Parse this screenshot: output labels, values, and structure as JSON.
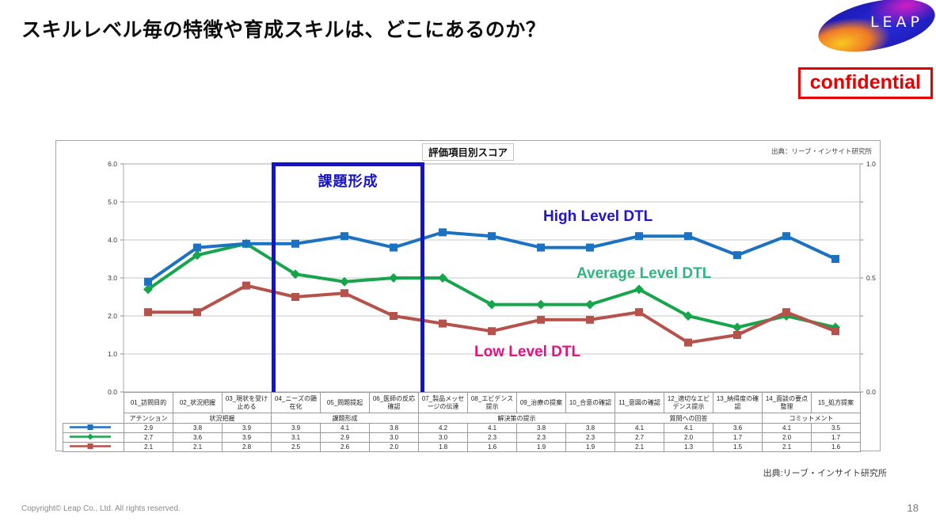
{
  "slide": {
    "title": "スキルレベル毎の特徴や育成スキルは、どこにあるのか？",
    "confidential_label": "confidential",
    "logo_text": "LEAP",
    "footnote_source": "出典:リーブ・インサイト研究所",
    "copyright": "Copyright© Leap Co., Ltd.  All rights reserved.",
    "page_number": "18"
  },
  "chart_data": {
    "type": "line",
    "title": "評価項目別スコア",
    "source": "出典：リーブ・インサイト研究所",
    "left_axis": {
      "min": 0,
      "max": 6,
      "ticks": [
        "6.0",
        "5.0",
        "4.0",
        "3.0",
        "2.0",
        "1.0",
        "0.0"
      ]
    },
    "right_axis": {
      "min": 0,
      "max": 1,
      "ticks": [
        "1.0",
        "0.5",
        "0.0"
      ],
      "tick_values_on_left_scale": [
        6,
        3,
        0
      ]
    },
    "gridline_color": "#c9c9c9",
    "categories": [
      "01_訪問目的",
      "02_状況把握",
      "03_現状を受け止める",
      "04_ニーズの顕在化",
      "05_問題提起",
      "06_医師の反応確認",
      "07_製品メッセージの伝達",
      "08_エビデンス提示",
      "09_治療の提案",
      "10_合意の確認",
      "11_意図の確認",
      "12_適切なエビデンス提示",
      "13_納得度の確認",
      "14_面談の要点整理",
      "15_処方提案"
    ],
    "category_groups": [
      {
        "label": "アテンション",
        "span": 1
      },
      {
        "label": "状況把握",
        "span": 2
      },
      {
        "label": "課題形成",
        "span": 3
      },
      {
        "label": "解決策の提示",
        "span": 4
      },
      {
        "label": "質問への回答",
        "span": 3
      },
      {
        "label": "コミットメント",
        "span": 2
      }
    ],
    "series": [
      {
        "name": "High Level DTL",
        "color": "#1b72c2",
        "label_color": "#2012ce",
        "marker": "square",
        "values": [
          2.9,
          3.8,
          3.9,
          3.9,
          4.1,
          3.8,
          4.2,
          4.1,
          3.8,
          3.8,
          4.1,
          4.1,
          3.6,
          4.1,
          3.5
        ]
      },
      {
        "name": "Average Level DTL",
        "color": "#17a54b",
        "label_color": "#2fb581",
        "marker": "diamond",
        "values": [
          2.7,
          3.6,
          3.9,
          3.1,
          2.9,
          3.0,
          3.0,
          2.3,
          2.3,
          2.3,
          2.7,
          2.0,
          1.7,
          2.0,
          1.7
        ]
      },
      {
        "name": "Low Level DTL",
        "color": "#b5524b",
        "label_color": "#e3127e",
        "marker": "square",
        "values": [
          2.1,
          2.1,
          2.8,
          2.5,
          2.6,
          2.0,
          1.8,
          1.6,
          1.9,
          1.9,
          2.1,
          1.3,
          1.5,
          2.1,
          1.6
        ]
      }
    ],
    "highlight": {
      "label": "課題形成",
      "from_category_index": 3,
      "to_category_index": 5,
      "color": "#1512cd"
    }
  }
}
